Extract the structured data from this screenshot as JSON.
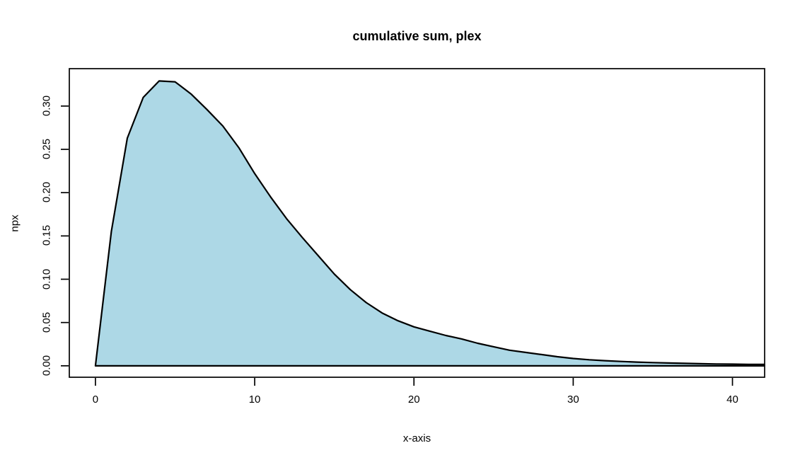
{
  "chart_data": {
    "type": "area",
    "title": "cumulative sum, plex",
    "xlabel": "x-axis",
    "ylabel": "npx",
    "x": [
      0,
      1,
      2,
      3,
      4,
      5,
      6,
      7,
      8,
      9,
      10,
      11,
      12,
      13,
      14,
      15,
      16,
      17,
      18,
      19,
      20,
      21,
      22,
      23,
      24,
      25,
      26,
      27,
      28,
      29,
      30,
      31,
      32,
      33,
      34,
      35,
      36,
      37,
      38,
      39,
      40,
      41,
      42
    ],
    "y": [
      0,
      0.155,
      0.263,
      0.31,
      0.329,
      0.328,
      0.314,
      0.296,
      0.277,
      0.252,
      0.222,
      0.195,
      0.17,
      0.148,
      0.127,
      0.106,
      0.088,
      0.073,
      0.061,
      0.052,
      0.045,
      0.04,
      0.035,
      0.031,
      0.026,
      0.022,
      0.018,
      0.0155,
      0.013,
      0.0105,
      0.0085,
      0.007,
      0.0059,
      0.005,
      0.0043,
      0.0037,
      0.0032,
      0.0028,
      0.0024,
      0.0021,
      0.0019,
      0.0017,
      0.0016
    ],
    "x_ticks": [
      0,
      10,
      20,
      30,
      40
    ],
    "x_tick_labels": [
      "0",
      "10",
      "20",
      "30",
      "40"
    ],
    "y_ticks": [
      0,
      0.05,
      0.1,
      0.15,
      0.2,
      0.25,
      0.3
    ],
    "y_tick_labels": [
      "0.00",
      "0.05",
      "0.10",
      "0.15",
      "0.20",
      "0.25",
      "0.30"
    ],
    "xlim": [
      -1.64,
      42.02
    ],
    "ylim": [
      -0.0132,
      0.3432
    ],
    "grid": false,
    "legend": "none",
    "fill_color": "#ADD8E6",
    "line_color": "#000000",
    "background": "#FFFFFF"
  }
}
